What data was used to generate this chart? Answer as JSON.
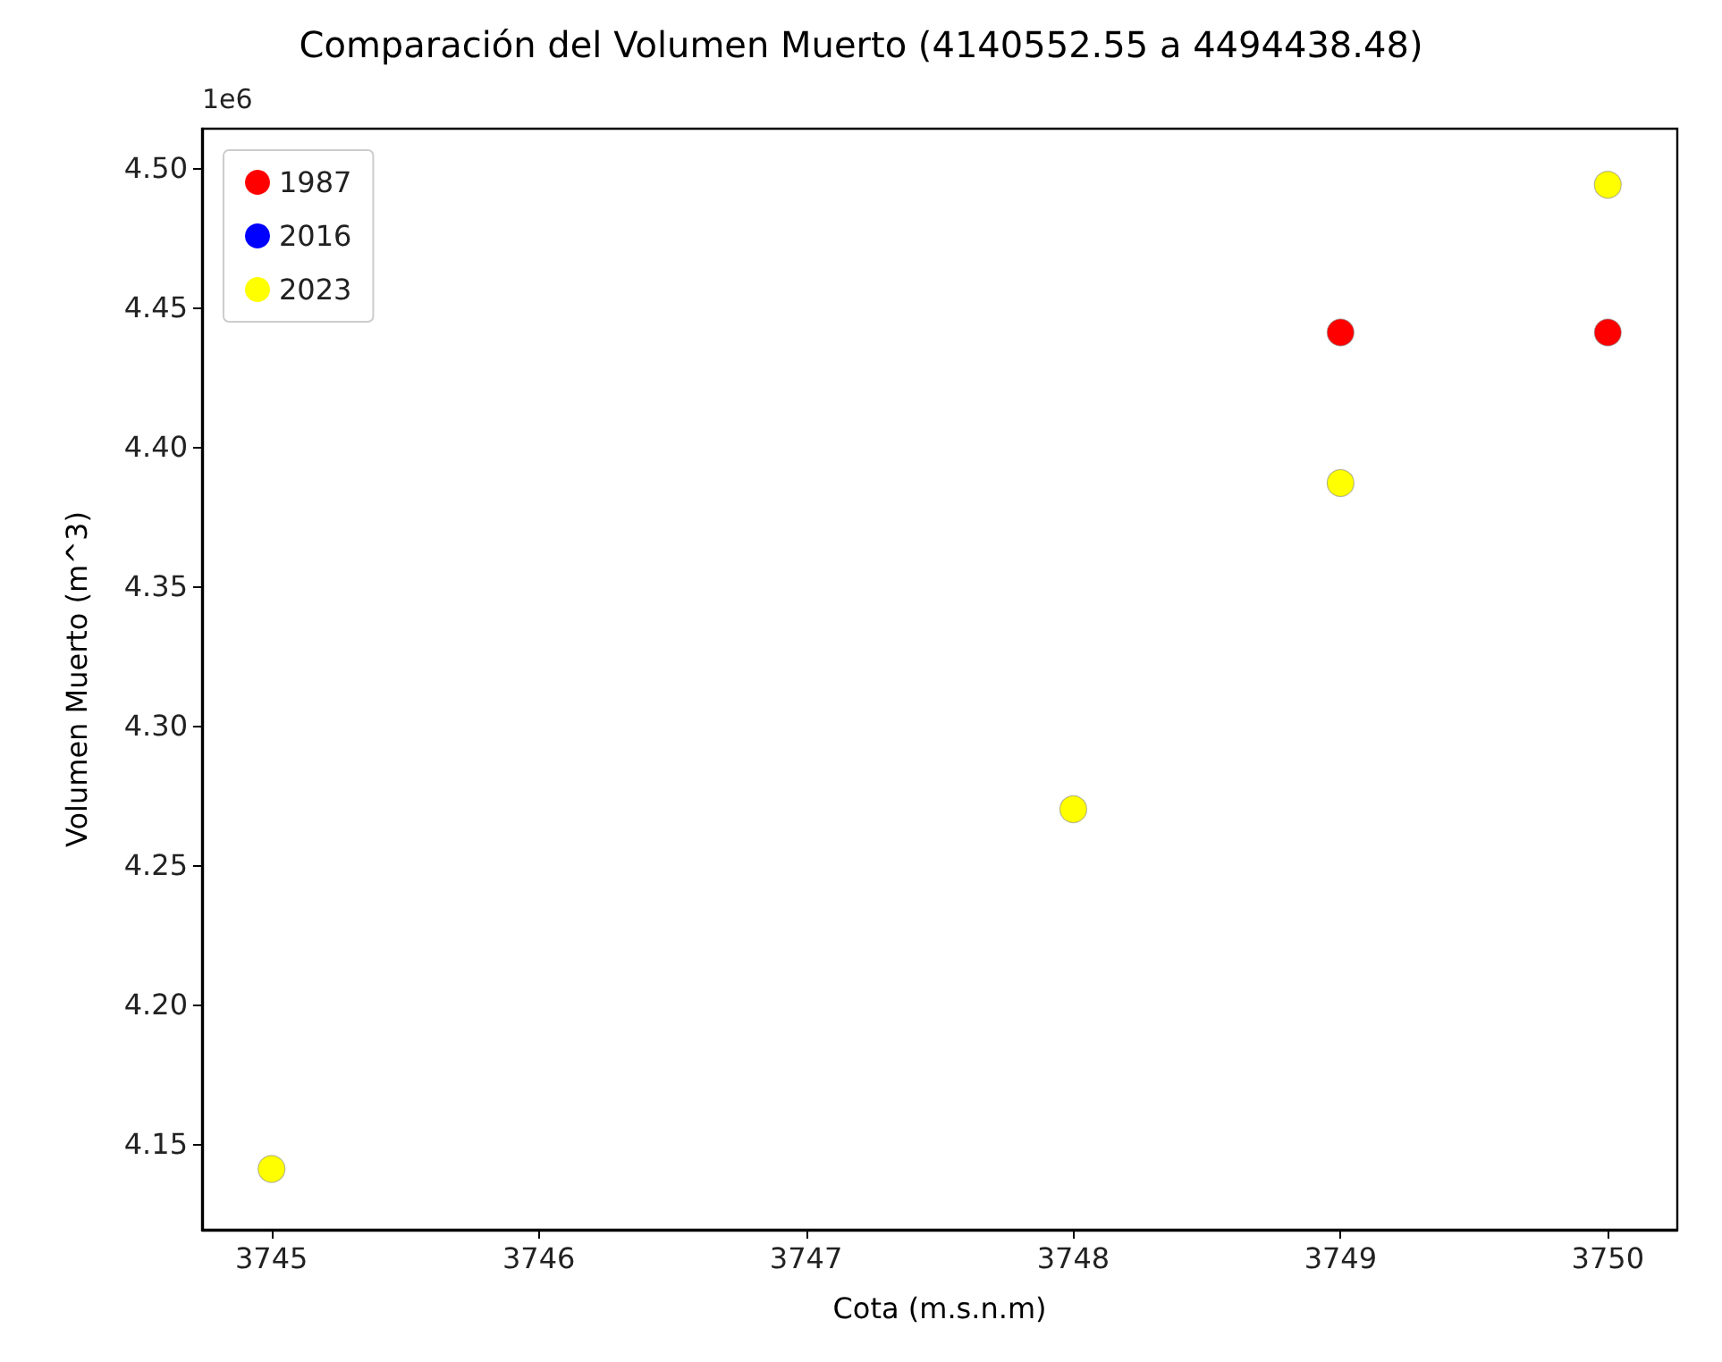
{
  "chart_data": {
    "type": "scatter",
    "title": "Comparación del Volumen Muerto (4140552.55 a 4494438.48)",
    "xlabel": "Cota (m.s.n.m)",
    "ylabel": "Volumen Muerto (m^3)",
    "annotations": [
      "1e6"
    ],
    "x": [
      3745,
      3748,
      3749,
      3750
    ],
    "series": [
      {
        "name": "1987",
        "color": "#ff0000",
        "values": [
          null,
          null,
          4.441,
          4.441
        ]
      },
      {
        "name": "2016",
        "color": "#0000ff",
        "values": [
          null,
          null,
          null,
          null
        ]
      },
      {
        "name": "2023",
        "color": "#ffff00",
        "values": [
          4.141,
          4.27,
          4.387,
          4.494
        ]
      }
    ],
    "xlim": [
      3744.74,
      3750.26
    ],
    "xticks": [
      3745,
      3746,
      3747,
      3748,
      3749,
      3750
    ],
    "ylim": [
      4.1192,
      4.5141
    ],
    "yticks": [
      4.15,
      {
        "value": 4.2,
        "label": "4.20"
      },
      4.25,
      {
        "value": 4.3,
        "label": "4.30"
      },
      4.35,
      {
        "value": 4.4,
        "label": "4.40"
      },
      4.45,
      {
        "value": 4.5,
        "label": "4.50"
      }
    ],
    "grid": false,
    "legend": "top left",
    "marker": "circle"
  }
}
